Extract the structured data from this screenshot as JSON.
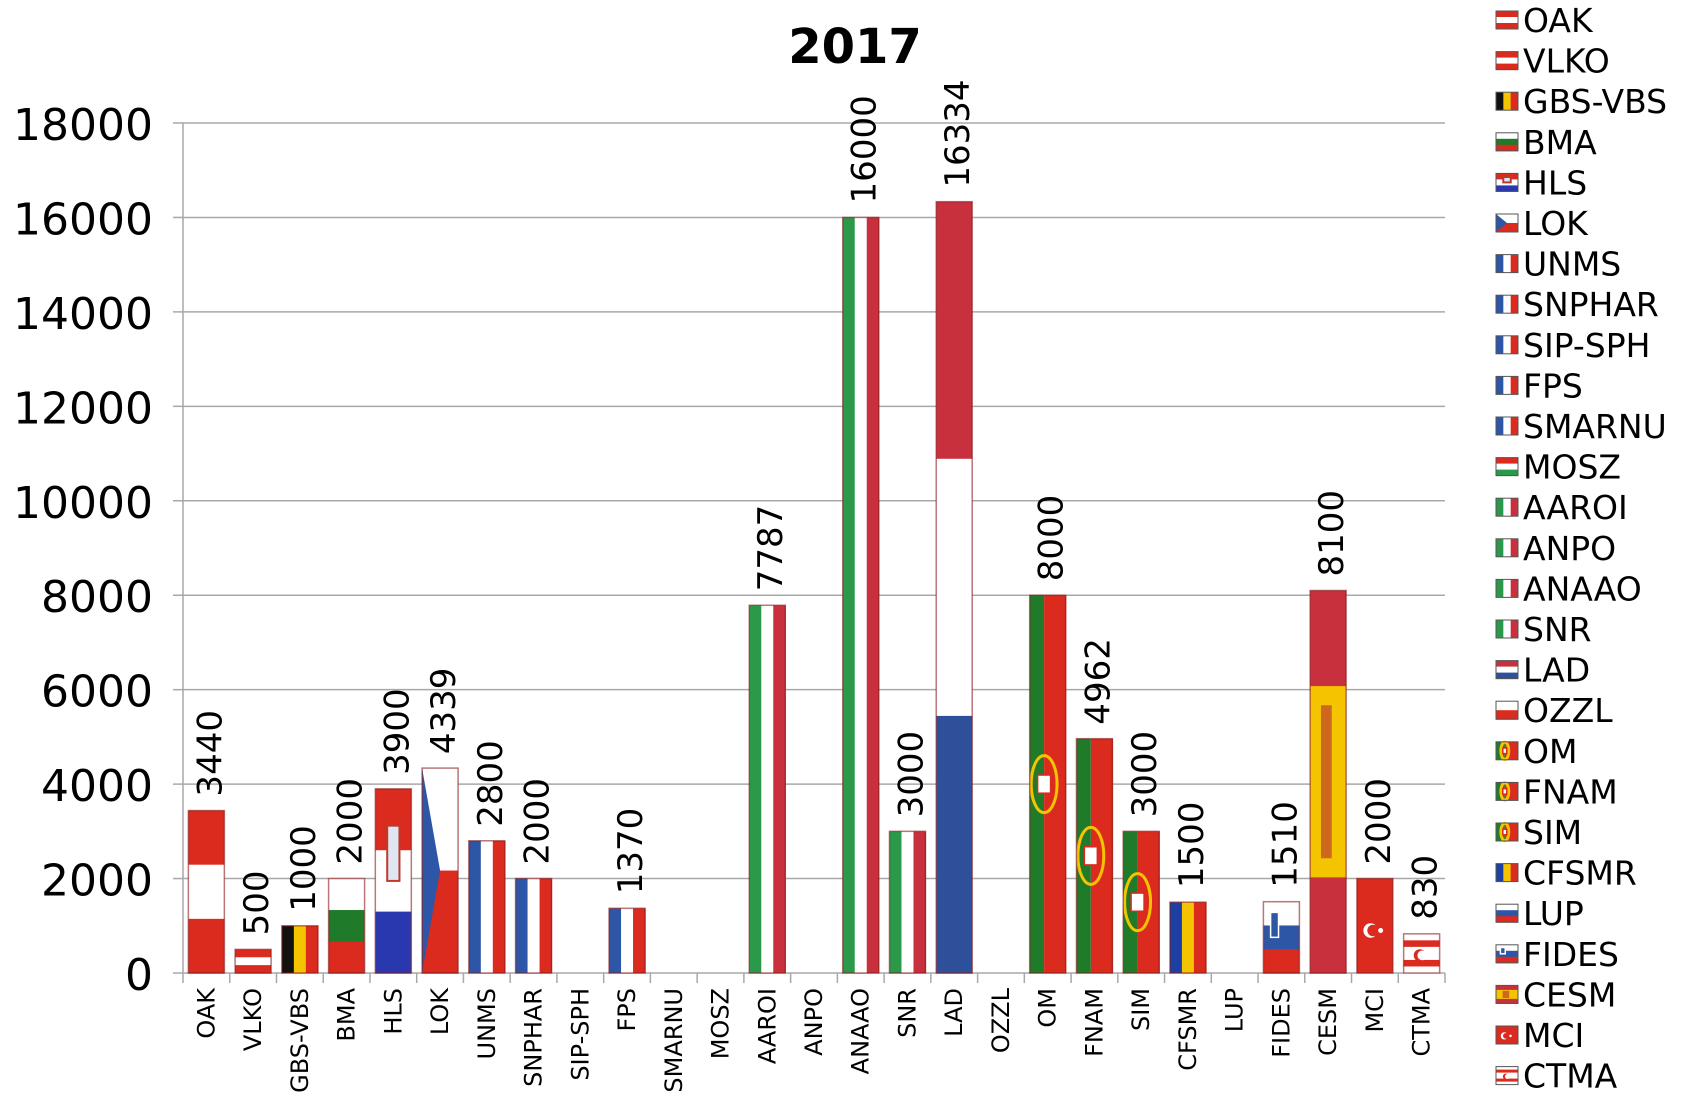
{
  "chart_data": {
    "type": "bar",
    "title": "2017",
    "xlabel": "",
    "ylabel": "",
    "ylim": [
      0,
      18000
    ],
    "yticks": [
      0,
      2000,
      4000,
      6000,
      8000,
      10000,
      12000,
      14000,
      16000,
      18000
    ],
    "grid": true,
    "legend_position": "right",
    "categories": [
      "OAK",
      "VLKO",
      "GBS-VBS",
      "BMA",
      "HLS",
      "LOK",
      "UNMS",
      "SNPHAR",
      "SIP-SPH",
      "FPS",
      "SMARNU",
      "MOSZ",
      "AAROI",
      "ANPO",
      "ANAAO",
      "SNR",
      "LAD",
      "OZZL",
      "OM",
      "FNAM",
      "SIM",
      "CFSMR",
      "LUP",
      "FIDES",
      "CESM",
      "MCI",
      "CTMA"
    ],
    "values": [
      3440,
      500,
      1000,
      2000,
      3900,
      4339,
      2800,
      2000,
      null,
      1370,
      null,
      null,
      7787,
      null,
      16000,
      3000,
      16334,
      null,
      8000,
      4962,
      3000,
      1500,
      null,
      1510,
      8100,
      2000,
      830
    ],
    "data_labels": [
      "3440",
      "500",
      "1000",
      "2000",
      "3900",
      "4339",
      "2800",
      "2000",
      "",
      "1370",
      "",
      "",
      "7787",
      "",
      "16000",
      "3000",
      "16334",
      "",
      "8000",
      "4962",
      "3000",
      "1500",
      "",
      "1510",
      "8100",
      "2000",
      "830"
    ],
    "flag_icons": [
      "flag-austria",
      "flag-austria",
      "flag-belgium",
      "flag-bulgaria",
      "flag-croatia",
      "flag-czech",
      "flag-france",
      "flag-france",
      "flag-france",
      "flag-france",
      "flag-france",
      "flag-hungary",
      "flag-italy",
      "flag-italy",
      "flag-italy",
      "flag-italy",
      "flag-netherlands",
      "flag-poland",
      "flag-portugal",
      "flag-portugal",
      "flag-portugal",
      "flag-romania",
      "flag-slovakia",
      "flag-slovenia",
      "flag-spain",
      "flag-turkey",
      "flag-cyprus-north"
    ],
    "legend": [
      "OAK",
      "VLKO",
      "GBS-VBS",
      "BMA",
      "HLS",
      "LOK",
      "UNMS",
      "SNPHAR",
      "SIP-SPH",
      "FPS",
      "SMARNU",
      "MOSZ",
      "AAROI",
      "ANPO",
      "ANAAO",
      "SNR",
      "LAD",
      "OZZL",
      "OM",
      "FNAM",
      "SIM",
      "CFSMR",
      "LUP",
      "FIDES",
      "CESM",
      "MCI",
      "CTMA"
    ]
  },
  "flag_colors": {
    "red": "#db2a1e",
    "crimson": "#c8303e",
    "white": "#ffffff",
    "blue": "#2d56a6",
    "navy": "#2e4f9a",
    "green": "#2a9a4a",
    "dark-green": "#1f7a2a",
    "yellow": "#f5c400",
    "black": "#111111"
  }
}
